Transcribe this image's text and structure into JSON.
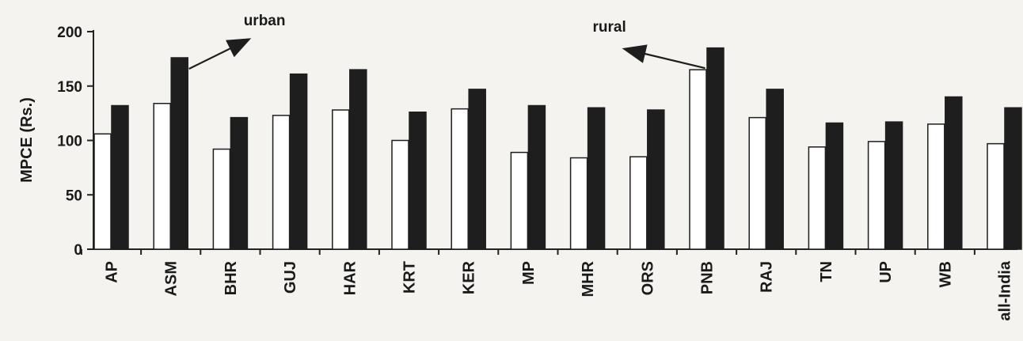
{
  "chart_data": {
    "type": "bar",
    "ylabel": "MPCE (Rs.)",
    "ylim": [
      0,
      200
    ],
    "yticks": [
      0,
      50,
      100,
      150,
      200
    ],
    "categories": [
      "AP",
      "ASM",
      "BHR",
      "GUJ",
      "HAR",
      "KRT",
      "KER",
      "MP",
      "MHR",
      "ORS",
      "PNB",
      "RAJ",
      "TN",
      "UP",
      "WB",
      "all-India"
    ],
    "series": [
      {
        "name": "rural",
        "fill": "#ffffff",
        "values": [
          106,
          134,
          92,
          123,
          128,
          100,
          129,
          89,
          84,
          85,
          165,
          121,
          94,
          99,
          115,
          97
        ]
      },
      {
        "name": "urban",
        "fill": "#1e1e1e",
        "values": [
          132,
          176,
          121,
          161,
          165,
          126,
          147,
          132,
          130,
          128,
          185,
          147,
          116,
          117,
          140,
          130
        ]
      }
    ],
    "annotations": [
      {
        "text": "urban",
        "series": "urban",
        "category": "ASM"
      },
      {
        "text": "rural",
        "series": "rural",
        "category": "PNB"
      }
    ],
    "grid": false,
    "legend": "none"
  }
}
